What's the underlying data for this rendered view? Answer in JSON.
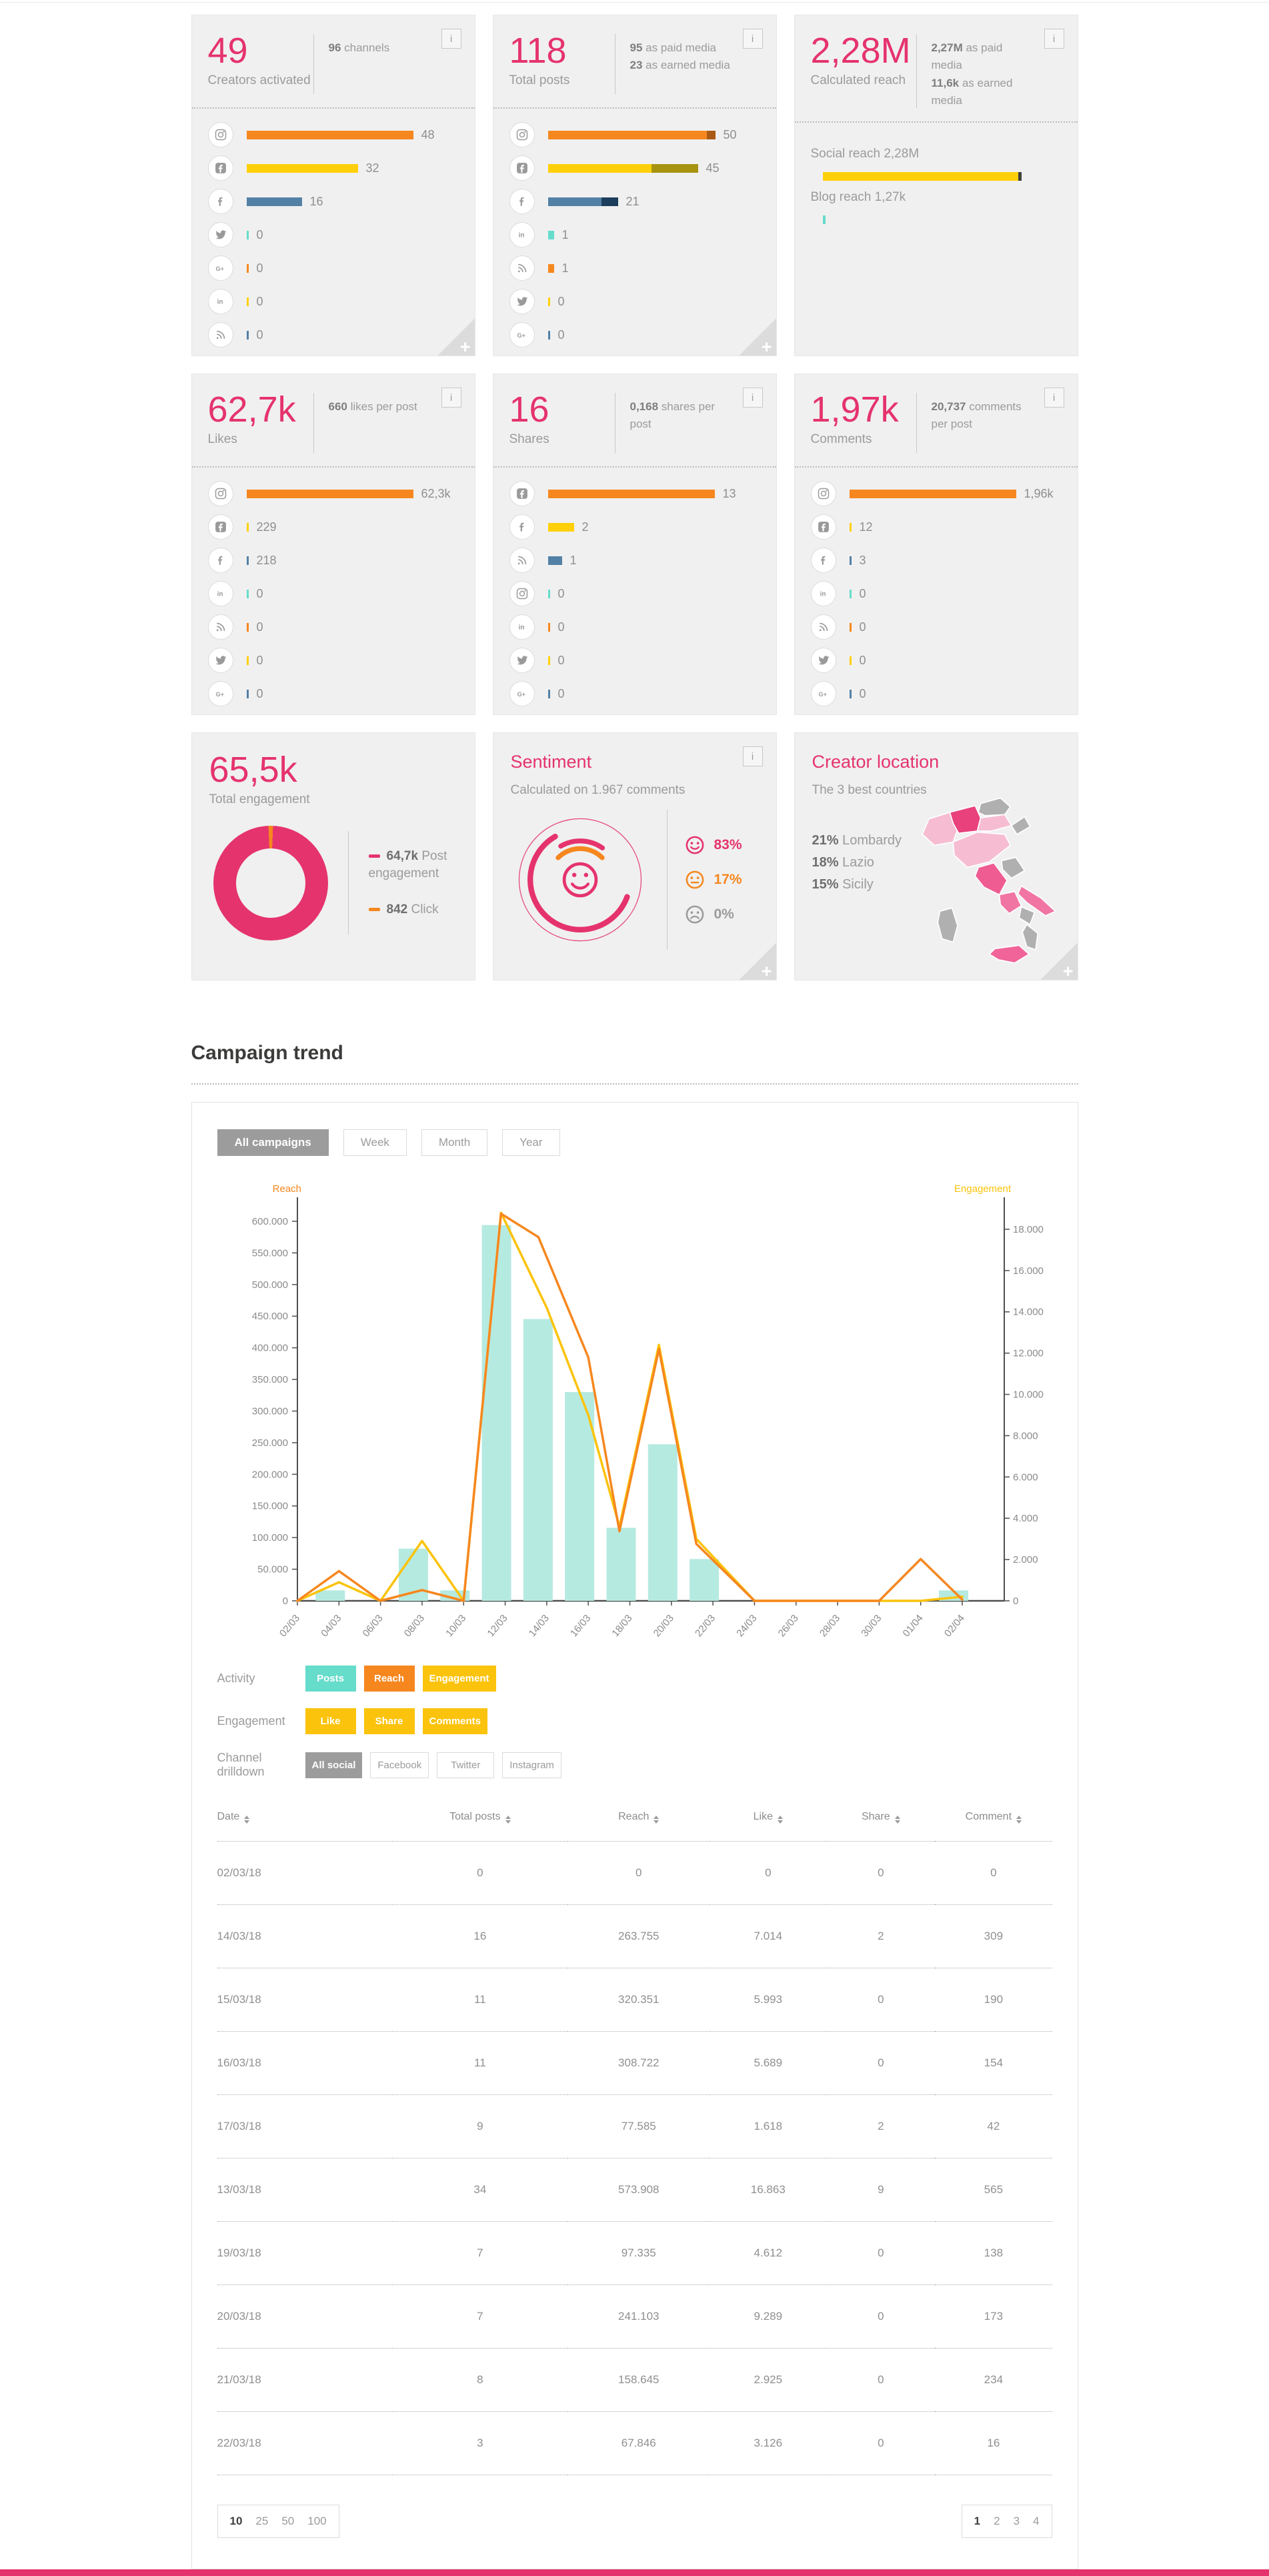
{
  "colors": {
    "pink": "#E5336D",
    "orange": "#F6871F",
    "yellow": "#FFD00A",
    "gold": "#FBC30B",
    "teal": "#66DCCB",
    "bar_teal": "#B5EAE1",
    "blue": "#5380A5",
    "navy": "#1C3D5C",
    "olive": "#A69310",
    "brown": "#AA5A14",
    "gray_active": "#9C9C9C"
  },
  "stat_cards": [
    {
      "id": "creators",
      "value": "49",
      "label": "Creators activated",
      "meta": [
        {
          "b": "96",
          "t": " channels"
        }
      ],
      "info": true,
      "fold": true,
      "body_type": "channels",
      "rows": [
        {
          "icon": "instagram-icon",
          "value": "48",
          "pct": 1,
          "color": "orange"
        },
        {
          "icon": "facebook-app-icon",
          "value": "32",
          "pct": 0.667,
          "color": "yellow"
        },
        {
          "icon": "facebook-icon",
          "value": "16",
          "pct": 0.333,
          "color": "blue"
        },
        {
          "icon": "twitter-icon",
          "value": "0",
          "pct": 0,
          "color": "teal"
        },
        {
          "icon": "gplus-icon",
          "value": "0",
          "pct": 0,
          "color": "orange"
        },
        {
          "icon": "linkedin-icon",
          "value": "0",
          "pct": 0,
          "color": "yellow"
        },
        {
          "icon": "rss-icon",
          "value": "0",
          "pct": 0,
          "color": "blue"
        }
      ]
    },
    {
      "id": "posts",
      "value": "118",
      "label": "Total posts",
      "meta": [
        {
          "b": "95",
          "t": " as paid media"
        },
        {
          "b": "23",
          "t": " as earned media"
        }
      ],
      "info": true,
      "fold": true,
      "body_type": "channels",
      "rows": [
        {
          "icon": "instagram-icon",
          "value": "50",
          "segments": [
            {
              "pct": 0.95,
              "color": "orange"
            },
            {
              "pct": 0.05,
              "color": "brown"
            }
          ]
        },
        {
          "icon": "facebook-app-icon",
          "value": "45",
          "segments": [
            {
              "pct": 0.62,
              "color": "yellow"
            },
            {
              "pct": 0.28,
              "color": "olive"
            }
          ]
        },
        {
          "icon": "facebook-icon",
          "value": "21",
          "segments": [
            {
              "pct": 0.32,
              "color": "blue"
            },
            {
              "pct": 0.1,
              "color": "navy"
            }
          ]
        },
        {
          "icon": "linkedin-icon",
          "value": "1",
          "pct": 0.035,
          "color": "teal"
        },
        {
          "icon": "rss-icon",
          "value": "1",
          "pct": 0.035,
          "color": "orange"
        },
        {
          "icon": "twitter-icon",
          "value": "0",
          "pct": 0,
          "color": "yellow"
        },
        {
          "icon": "gplus-icon",
          "value": "0",
          "pct": 0,
          "color": "blue"
        }
      ]
    },
    {
      "id": "reach",
      "value": "2,28M",
      "label": "Calculated reach",
      "meta": [
        {
          "b": "2,27M",
          "t": " as paid media"
        },
        {
          "b": "11,6k",
          "t": " as earned media"
        }
      ],
      "info": true,
      "fold": false,
      "body_type": "reach",
      "body": {
        "items": [
          {
            "label": "Social reach 2,28M",
            "pct": 0.65,
            "color": "yellow",
            "cap": true
          },
          {
            "label": "Blog reach 1,27k",
            "pct": 0,
            "color": "teal",
            "cap": false
          }
        ]
      }
    },
    {
      "id": "likes",
      "value": "62,7k",
      "label": "Likes",
      "meta": [
        {
          "b": "660",
          "t": " likes per post"
        }
      ],
      "info": true,
      "fold": false,
      "body_type": "channels",
      "rows": [
        {
          "icon": "instagram-icon",
          "value": "62,3k",
          "pct": 1,
          "color": "orange"
        },
        {
          "icon": "facebook-app-icon",
          "value": "229",
          "pct": 0.012,
          "color": "yellow"
        },
        {
          "icon": "facebook-icon",
          "value": "218",
          "pct": 0.012,
          "color": "blue"
        },
        {
          "icon": "linkedin-icon",
          "value": "0",
          "pct": 0,
          "color": "teal"
        },
        {
          "icon": "rss-icon",
          "value": "0",
          "pct": 0,
          "color": "orange"
        },
        {
          "icon": "twitter-icon",
          "value": "0",
          "pct": 0,
          "color": "yellow"
        },
        {
          "icon": "gplus-icon",
          "value": "0",
          "pct": 0,
          "color": "blue"
        }
      ]
    },
    {
      "id": "shares",
      "value": "16",
      "label": "Shares",
      "meta": [
        {
          "b": "0,168",
          "t": " shares per post"
        }
      ],
      "info": true,
      "fold": false,
      "body_type": "channels",
      "rows": [
        {
          "icon": "facebook-app-icon",
          "value": "13",
          "pct": 1,
          "color": "orange"
        },
        {
          "icon": "facebook-icon",
          "value": "2",
          "pct": 0.155,
          "color": "yellow"
        },
        {
          "icon": "rss-icon",
          "value": "1",
          "pct": 0.085,
          "color": "blue"
        },
        {
          "icon": "instagram-icon",
          "value": "0",
          "pct": 0,
          "color": "teal"
        },
        {
          "icon": "linkedin-icon",
          "value": "0",
          "pct": 0,
          "color": "orange"
        },
        {
          "icon": "twitter-icon",
          "value": "0",
          "pct": 0,
          "color": "yellow"
        },
        {
          "icon": "gplus-icon",
          "value": "0",
          "pct": 0,
          "color": "blue"
        }
      ]
    },
    {
      "id": "comments",
      "value": "1,97k",
      "label": "Comments",
      "meta": [
        {
          "b": "20,737",
          "t": " comments per post"
        }
      ],
      "info": true,
      "fold": false,
      "body_type": "channels",
      "rows": [
        {
          "icon": "instagram-icon",
          "value": "1,96k",
          "pct": 1,
          "color": "orange"
        },
        {
          "icon": "facebook-app-icon",
          "value": "12",
          "pct": 0.012,
          "color": "yellow"
        },
        {
          "icon": "facebook-icon",
          "value": "3",
          "pct": 0.006,
          "color": "blue"
        },
        {
          "icon": "linkedin-icon",
          "value": "0",
          "pct": 0,
          "color": "teal"
        },
        {
          "icon": "rss-icon",
          "value": "0",
          "pct": 0,
          "color": "orange"
        },
        {
          "icon": "twitter-icon",
          "value": "0",
          "pct": 0,
          "color": "yellow"
        },
        {
          "icon": "gplus-icon",
          "value": "0",
          "pct": 0,
          "color": "blue"
        }
      ]
    }
  ],
  "row3": {
    "engagement": {
      "value": "65,5k",
      "label": "Total engagement",
      "legend": [
        {
          "color": "#E5336D",
          "b": "64,7k",
          "t": " Post engagement"
        },
        {
          "color": "#F6871F",
          "b": "842",
          "t": " Click"
        }
      ],
      "slices": [
        {
          "label": "Post engagement",
          "value": 64700,
          "color": "#E5336D"
        },
        {
          "label": "Click",
          "value": 842,
          "color": "#F6871F"
        }
      ]
    },
    "sentiment": {
      "title": "Sentiment",
      "subtitle": "Calculated on 1.967 comments",
      "items": [
        {
          "mood": "happy",
          "pct": "83%",
          "color": "#E5336D"
        },
        {
          "mood": "neutral",
          "pct": "17%",
          "color": "#F6871F"
        },
        {
          "mood": "sad",
          "pct": "0%",
          "color": "#9B9B9B"
        }
      ]
    },
    "location": {
      "title": "Creator location",
      "subtitle": "The 3 best countries",
      "stats": [
        {
          "b": "21%",
          "t": " Lombardy"
        },
        {
          "b": "18%",
          "t": " Lazio"
        },
        {
          "b": "15%",
          "t": " Sicily"
        }
      ]
    }
  },
  "trend": {
    "title": "Campaign trend",
    "filters": [
      {
        "label": "All campaigns",
        "active": true
      },
      {
        "label": "Week",
        "active": false
      },
      {
        "label": "Month",
        "active": false
      },
      {
        "label": "Year",
        "active": false
      }
    ],
    "controls": [
      {
        "label": "Activity",
        "buttons": [
          {
            "label": "Posts",
            "color": "teal"
          },
          {
            "label": "Reach",
            "color": "orange"
          },
          {
            "label": "Engagement",
            "color": "gold"
          }
        ]
      },
      {
        "label": "Engagement",
        "buttons": [
          {
            "label": "Like",
            "color": "gold"
          },
          {
            "label": "Share",
            "color": "gold"
          },
          {
            "label": "Comments",
            "color": "gold"
          }
        ]
      },
      {
        "label": "Channel drilldown",
        "buttons": [
          {
            "label": "All social",
            "active": true
          },
          {
            "label": "Facebook"
          },
          {
            "label": "Twitter"
          },
          {
            "label": "Instagram"
          }
        ]
      }
    ],
    "pagination": {
      "sizes": [
        "10",
        "25",
        "50",
        "100"
      ],
      "active_size": "10",
      "pages": [
        "1",
        "2",
        "3",
        "4"
      ],
      "active_page": "1"
    }
  },
  "chart_data": {
    "type": "bar+line",
    "x_tick_labels": [
      "02/03",
      "04/03",
      "06/03",
      "08/03",
      "10/03",
      "12/03",
      "14/03",
      "16/03",
      "18/03",
      "20/03",
      "22/03",
      "24/03",
      "26/03",
      "28/03",
      "30/03",
      "01/04",
      "02/04"
    ],
    "left_axis": {
      "label": "Reach",
      "color": "#F6871F",
      "ticks_max": 600000,
      "tick_step": 50000,
      "scale_max": 620000
    },
    "right_axis": {
      "label": "Engagement",
      "color": "#FBC30B",
      "ticks_max": 18000,
      "tick_step": 2000,
      "scale_max": 19000
    },
    "bars": {
      "name": "Posts",
      "color": "#B5EAE1",
      "scale_max": 37,
      "values": [
        0,
        1,
        0,
        5,
        1,
        36,
        27,
        20,
        7,
        15,
        4,
        0,
        0,
        0,
        0,
        0,
        1
      ]
    },
    "series": [
      {
        "name": "Engagement",
        "axis": "right",
        "color": "#FBC30B",
        "points": [
          [
            0,
            0
          ],
          [
            1,
            900
          ],
          [
            2,
            0
          ],
          [
            3,
            2900
          ],
          [
            4,
            0
          ],
          [
            4.9,
            18800
          ],
          [
            6,
            14200
          ],
          [
            7,
            9000
          ],
          [
            7.75,
            3600
          ],
          [
            8.7,
            12400
          ],
          [
            9.6,
            3000
          ],
          [
            11,
            0
          ],
          [
            15,
            0
          ],
          [
            16,
            200
          ]
        ]
      },
      {
        "name": "Reach",
        "axis": "left",
        "color": "#F6871F",
        "points": [
          [
            0,
            0
          ],
          [
            1,
            47000
          ],
          [
            2,
            0
          ],
          [
            3,
            17000
          ],
          [
            4,
            0
          ],
          [
            4.9,
            612000
          ],
          [
            5.8,
            575000
          ],
          [
            7,
            385000
          ],
          [
            7.75,
            110000
          ],
          [
            8.7,
            398000
          ],
          [
            9.6,
            90000
          ],
          [
            11,
            0
          ],
          [
            14,
            0
          ],
          [
            15,
            66000
          ],
          [
            16,
            2000
          ]
        ]
      }
    ]
  },
  "table": {
    "headers": [
      "Date",
      "Total posts",
      "Reach",
      "Like",
      "Share",
      "Comment"
    ],
    "rows": [
      [
        "02/03/18",
        "0",
        "0",
        "0",
        "0",
        "0"
      ],
      [
        "14/03/18",
        "16",
        "263.755",
        "7.014",
        "2",
        "309"
      ],
      [
        "15/03/18",
        "11",
        "320.351",
        "5.993",
        "0",
        "190"
      ],
      [
        "16/03/18",
        "11",
        "308.722",
        "5.689",
        "0",
        "154"
      ],
      [
        "17/03/18",
        "9",
        "77.585",
        "1.618",
        "2",
        "42"
      ],
      [
        "13/03/18",
        "34",
        "573.908",
        "16.863",
        "9",
        "565"
      ],
      [
        "19/03/18",
        "7",
        "97.335",
        "4.612",
        "0",
        "138"
      ],
      [
        "20/03/18",
        "7",
        "241.103",
        "9.289",
        "0",
        "173"
      ],
      [
        "21/03/18",
        "8",
        "158.645",
        "2.925",
        "0",
        "234"
      ],
      [
        "22/03/18",
        "3",
        "67.846",
        "3.126",
        "0",
        "16"
      ]
    ]
  }
}
